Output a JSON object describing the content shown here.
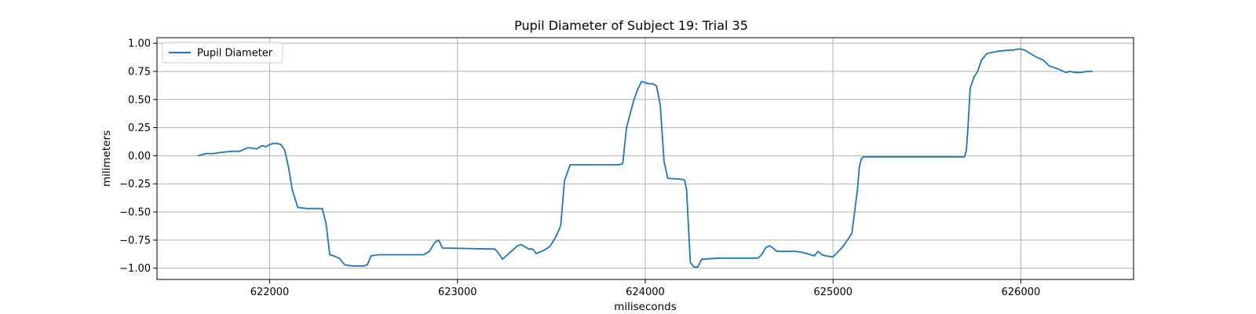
{
  "chart_data": {
    "type": "line",
    "title": "Pupil Diameter of Subject 19: Trial 35",
    "xlabel": "miliseconds",
    "ylabel": "milimeters",
    "xlim": [
      621400,
      626600
    ],
    "ylim": [
      -1.1,
      1.05
    ],
    "xticks": [
      622000,
      623000,
      624000,
      625000,
      626000
    ],
    "xtick_labels": [
      "622000",
      "623000",
      "624000",
      "625000",
      "626000"
    ],
    "yticks": [
      1.0,
      0.75,
      0.5,
      0.25,
      0.0,
      -0.25,
      -0.5,
      -0.75,
      -1.0
    ],
    "ytick_labels": [
      "1.00",
      "0.75",
      "0.50",
      "0.25",
      "0.00",
      "−0.25",
      "−0.50",
      "−0.75",
      "−1.00"
    ],
    "grid": true,
    "legend": {
      "position": "top-left",
      "entries": [
        "Pupil Diameter"
      ]
    },
    "colors": {
      "line": "#1f77b4",
      "grid": "#b0b0b0",
      "axes": "#000000"
    },
    "series": [
      {
        "name": "Pupil Diameter",
        "x": [
          621620,
          621660,
          621700,
          621740,
          621800,
          621840,
          621880,
          621900,
          621930,
          621960,
          621980,
          622000,
          622020,
          622040,
          622060,
          622080,
          622100,
          622120,
          622150,
          622200,
          622280,
          622300,
          622320,
          622340,
          622370,
          622400,
          622440,
          622500,
          622520,
          622540,
          622580,
          622700,
          622820,
          622850,
          622880,
          622900,
          622920,
          623200,
          623220,
          623240,
          623280,
          623320,
          623340,
          623380,
          623400,
          623420,
          623460,
          623490,
          623510,
          623530,
          623550,
          623570,
          623600,
          623860,
          623880,
          623900,
          623940,
          623960,
          623980,
          624020,
          624040,
          624060,
          624080,
          624100,
          624120,
          624200,
          624210,
          624220,
          624240,
          624260,
          624280,
          624300,
          624400,
          624600,
          624620,
          624640,
          624660,
          624680,
          624700,
          624800,
          624840,
          624880,
          624900,
          624920,
          624940,
          624960,
          625000,
          625040,
          625060,
          625100,
          625130,
          625140,
          625150,
          625160,
          625180,
          625200,
          625680,
          625700,
          625710,
          625720,
          625730,
          625750,
          625770,
          625790,
          625820,
          625880,
          625940,
          625960,
          625990,
          626020,
          626040,
          626080,
          626120,
          626150,
          626200,
          626240,
          626260,
          626290,
          626320,
          626350,
          626380
        ],
        "y": [
          0.0,
          0.02,
          0.02,
          0.03,
          0.04,
          0.04,
          0.07,
          0.07,
          0.06,
          0.09,
          0.08,
          0.1,
          0.11,
          0.11,
          0.1,
          0.05,
          -0.1,
          -0.3,
          -0.46,
          -0.47,
          -0.47,
          -0.6,
          -0.88,
          -0.89,
          -0.91,
          -0.97,
          -0.98,
          -0.98,
          -0.97,
          -0.89,
          -0.88,
          -0.88,
          -0.88,
          -0.85,
          -0.77,
          -0.75,
          -0.82,
          -0.83,
          -0.87,
          -0.92,
          -0.86,
          -0.8,
          -0.79,
          -0.83,
          -0.83,
          -0.87,
          -0.84,
          -0.81,
          -0.76,
          -0.7,
          -0.62,
          -0.22,
          -0.08,
          -0.08,
          -0.07,
          0.25,
          0.5,
          0.59,
          0.66,
          0.64,
          0.64,
          0.62,
          0.45,
          -0.05,
          -0.2,
          -0.21,
          -0.22,
          -0.3,
          -0.95,
          -0.99,
          -0.99,
          -0.92,
          -0.91,
          -0.91,
          -0.88,
          -0.82,
          -0.8,
          -0.82,
          -0.85,
          -0.85,
          -0.86,
          -0.88,
          -0.89,
          -0.85,
          -0.88,
          -0.89,
          -0.9,
          -0.83,
          -0.79,
          -0.69,
          -0.3,
          -0.1,
          -0.03,
          -0.01,
          -0.01,
          -0.01,
          -0.01,
          -0.01,
          0.05,
          0.3,
          0.6,
          0.7,
          0.75,
          0.85,
          0.91,
          0.93,
          0.94,
          0.94,
          0.95,
          0.94,
          0.92,
          0.88,
          0.85,
          0.8,
          0.77,
          0.74,
          0.75,
          0.74,
          0.74,
          0.75,
          0.75
        ]
      }
    ]
  }
}
